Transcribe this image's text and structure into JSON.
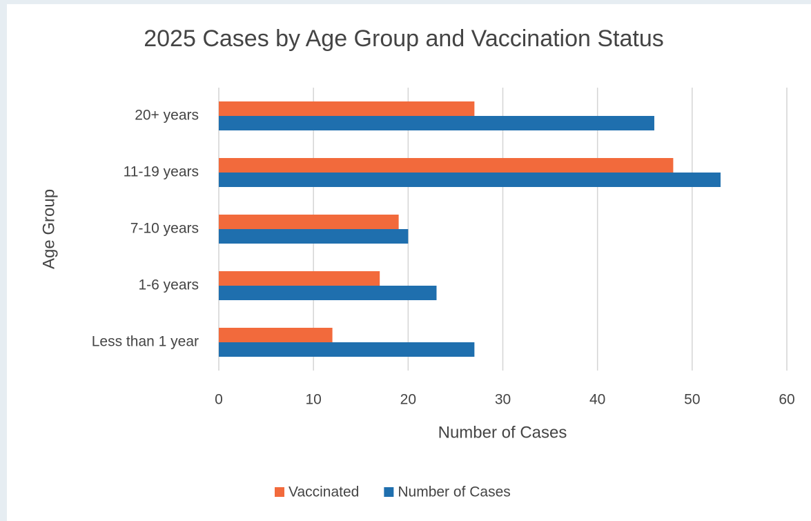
{
  "chart_data": {
    "type": "bar",
    "orientation": "horizontal",
    "title": "2025 Cases by Age Group and Vaccination Status",
    "x_label": "Number of Cases",
    "y_label": "Age Group",
    "categories": [
      "20+ years",
      "11-19 years",
      "7-10 years",
      "1-6 years",
      "Less than 1 year"
    ],
    "series": [
      {
        "name": "Vaccinated",
        "color": "#f26a3c",
        "values": [
          27,
          48,
          19,
          17,
          12
        ]
      },
      {
        "name": "Number of Cases",
        "color": "#1f6fae",
        "values": [
          46,
          53,
          20,
          23,
          27
        ]
      }
    ],
    "xlim": [
      0,
      60
    ],
    "xticks": [
      0,
      10,
      20,
      30,
      40,
      50,
      60
    ],
    "grid": true,
    "legend": "bottom"
  }
}
